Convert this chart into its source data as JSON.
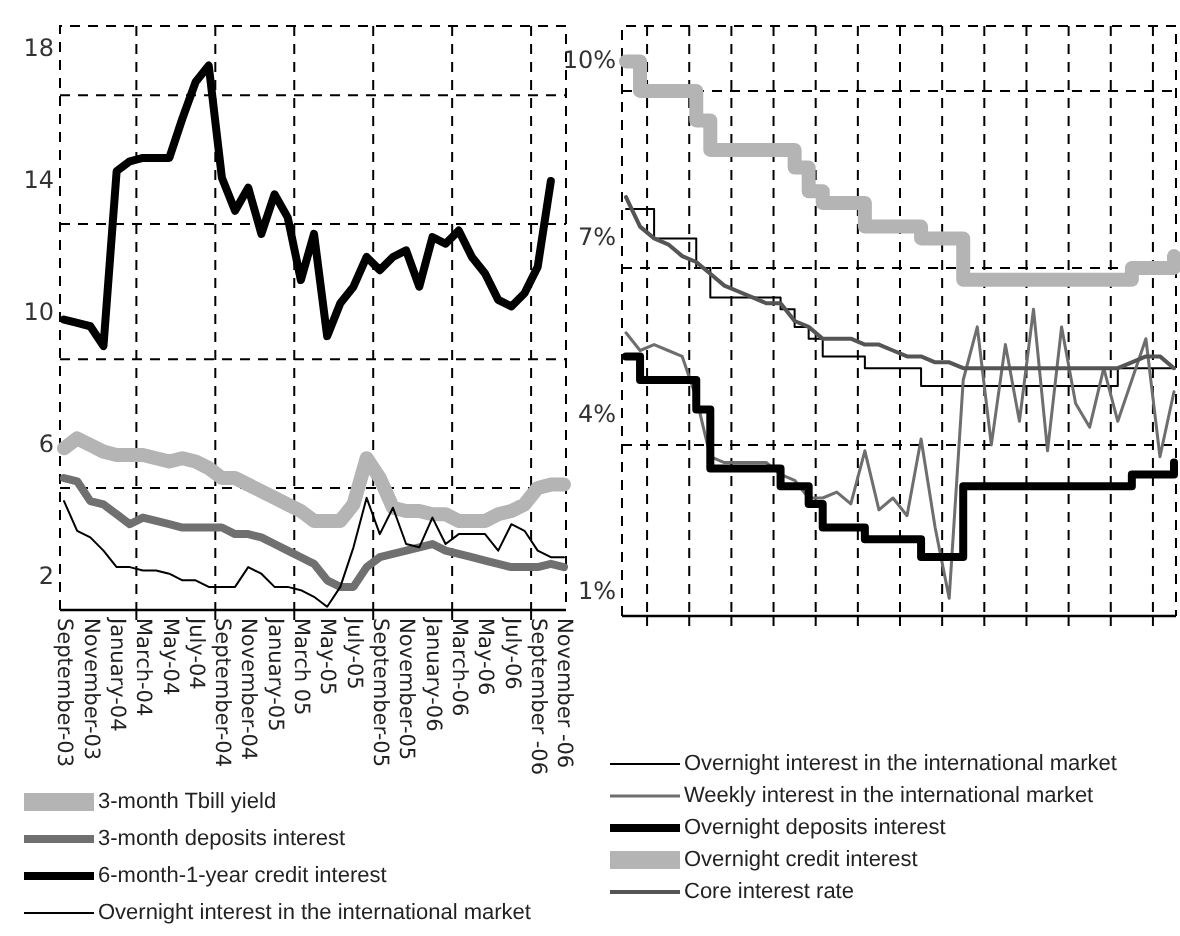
{
  "chart_data": [
    {
      "type": "line",
      "categories": [
        "September-03",
        null,
        "November-03",
        null,
        "January-04",
        null,
        "March-04",
        null,
        "May-04",
        null,
        "July-04",
        null,
        "September-04",
        null,
        "November-04",
        null,
        "January-05",
        null,
        "March 05",
        null,
        "May-05",
        null,
        "July-05",
        null,
        "September-05",
        null,
        "November-05",
        null,
        "January-06",
        null,
        "March-06",
        null,
        "May-06",
        null,
        "July-06",
        null,
        "September -06",
        null,
        "November -06"
      ],
      "series": [
        {
          "name": "3-month Tbill yield",
          "color": "#b4b4b4",
          "values": [
            5.9,
            6.2,
            6.0,
            5.8,
            5.7,
            5.7,
            5.7,
            5.6,
            5.5,
            5.6,
            5.5,
            5.3,
            5.0,
            5.0,
            4.8,
            4.6,
            4.4,
            4.2,
            4.0,
            3.7,
            3.7,
            3.7,
            4.2,
            5.6,
            5.0,
            4.1,
            4.0,
            4.0,
            3.9,
            3.9,
            3.7,
            3.7,
            3.7,
            3.9,
            4.0,
            4.2,
            4.7,
            4.8,
            4.8
          ]
        },
        {
          "name": "3-month deposits interest",
          "color": "#707070",
          "values": [
            5.0,
            4.9,
            4.3,
            4.2,
            3.9,
            3.6,
            3.8,
            3.7,
            3.6,
            3.5,
            3.5,
            3.5,
            3.5,
            3.3,
            3.3,
            3.2,
            3.0,
            2.8,
            2.6,
            2.4,
            1.9,
            1.7,
            1.7,
            2.3,
            2.6,
            2.7,
            2.8,
            2.9,
            3.0,
            2.8,
            2.7,
            2.6,
            2.5,
            2.4,
            2.3,
            2.3,
            2.3,
            2.4,
            2.3
          ]
        },
        {
          "name": "6-month-1-year credit interest",
          "color": "#000000",
          "values": [
            9.8,
            9.7,
            9.6,
            9.0,
            14.3,
            14.6,
            14.7,
            14.7,
            14.7,
            15.9,
            17.0,
            17.5,
            14.1,
            13.1,
            13.8,
            12.4,
            13.6,
            12.9,
            11.0,
            12.4,
            9.3,
            10.3,
            10.8,
            11.7,
            11.3,
            11.7,
            11.9,
            10.8,
            12.3,
            12.1,
            12.5,
            11.7,
            11.2,
            10.4,
            10.2,
            10.6,
            11.4,
            14.0,
            null
          ]
        },
        {
          "name": "Overnight interest in the international market",
          "color": "#000000",
          "values": [
            4.3,
            3.4,
            3.2,
            2.8,
            2.3,
            2.3,
            2.2,
            2.2,
            2.1,
            1.9,
            1.9,
            1.7,
            1.7,
            1.7,
            2.3,
            2.1,
            1.7,
            1.7,
            1.6,
            1.4,
            1.1,
            1.7,
            2.9,
            4.4,
            3.3,
            4.1,
            3.0,
            2.9,
            3.8,
            3.0,
            3.3,
            3.3,
            3.3,
            2.8,
            3.6,
            3.4,
            2.8,
            2.6,
            2.6
          ]
        }
      ],
      "ylim": [
        1,
        18.7
      ],
      "yticks": [
        2,
        6,
        10,
        14,
        18
      ],
      "grid": "x",
      "ref_lines": [
        {
          "axis": "y",
          "value": 4.7,
          "line_style": "dashed"
        },
        {
          "axis": "y",
          "value": 8.6,
          "line_style": "dashed"
        },
        {
          "axis": "y",
          "value": 12.7,
          "line_style": "dashed"
        },
        {
          "axis": "y",
          "value": 16.6,
          "line_style": "dashed"
        }
      ],
      "legend": "bottom"
    },
    {
      "type": "line",
      "categories": [
        null,
        null,
        null,
        null,
        null,
        null,
        null,
        null,
        null,
        null,
        null,
        null,
        null,
        null,
        null,
        null,
        null,
        null,
        null,
        null,
        null,
        null,
        null,
        null,
        null,
        null,
        null,
        null,
        null,
        null,
        null,
        null,
        null,
        null,
        null,
        null,
        null,
        null,
        null,
        null
      ],
      "series": [
        {
          "name": "Overnight interest in the international market",
          "type": "step",
          "color": "#000000",
          "values": [
            7.5,
            7.5,
            7.0,
            7.0,
            7.0,
            6.5,
            6.0,
            6.0,
            6.0,
            6.0,
            6.0,
            5.8,
            5.5,
            5.3,
            5.0,
            5.0,
            5.0,
            4.8,
            4.8,
            4.8,
            4.8,
            4.5,
            4.5,
            4.5,
            4.5,
            4.5,
            4.5,
            4.5,
            4.5,
            4.5,
            4.5,
            4.5,
            4.5,
            4.5,
            4.5,
            4.8,
            4.8,
            4.8,
            4.8,
            4.8
          ]
        },
        {
          "name": "Weekly interest in the international market",
          "color": "#6e6e6e",
          "values": [
            5.4,
            5.1,
            5.2,
            5.1,
            5.0,
            4.3,
            3.3,
            3.2,
            3.2,
            3.2,
            3.2,
            3.0,
            2.9,
            2.6,
            2.6,
            2.7,
            2.5,
            3.4,
            2.4,
            2.6,
            2.3,
            3.6,
            2.1,
            0.9,
            4.6,
            5.5,
            3.5,
            5.2,
            3.9,
            5.8,
            3.4,
            5.5,
            4.2,
            3.8,
            4.8,
            3.9,
            4.6,
            5.3,
            3.3,
            4.4
          ]
        },
        {
          "name": "Overnight deposits interest",
          "type": "step",
          "color": "#000000",
          "values": [
            5.0,
            4.6,
            4.6,
            4.6,
            4.6,
            4.1,
            3.1,
            3.1,
            3.1,
            3.1,
            3.1,
            2.8,
            2.8,
            2.5,
            2.1,
            2.1,
            2.1,
            1.9,
            1.9,
            1.9,
            1.9,
            1.6,
            1.6,
            1.6,
            2.8,
            2.8,
            2.8,
            2.8,
            2.8,
            2.8,
            2.8,
            2.8,
            2.8,
            2.8,
            2.8,
            2.8,
            3.0,
            3.0,
            3.0,
            3.2
          ]
        },
        {
          "name": "Overnight credit interest",
          "type": "step",
          "color": "#b4b4b4",
          "values": [
            10.0,
            9.5,
            9.5,
            9.5,
            9.5,
            9.0,
            8.5,
            8.5,
            8.5,
            8.5,
            8.5,
            8.5,
            8.2,
            7.8,
            7.6,
            7.6,
            7.6,
            7.2,
            7.2,
            7.2,
            7.2,
            7.0,
            7.0,
            7.0,
            6.3,
            6.3,
            6.3,
            6.3,
            6.3,
            6.3,
            6.3,
            6.3,
            6.3,
            6.3,
            6.3,
            6.3,
            6.5,
            6.5,
            6.5,
            6.7
          ]
        },
        {
          "name": "Core interest rate",
          "color": "#555555",
          "values": [
            7.7,
            7.2,
            7.0,
            6.9,
            6.7,
            6.6,
            6.4,
            6.2,
            6.1,
            6.0,
            5.9,
            5.9,
            5.6,
            5.5,
            5.3,
            5.3,
            5.3,
            5.2,
            5.2,
            5.1,
            5.0,
            5.0,
            4.9,
            4.9,
            4.8,
            4.8,
            4.8,
            4.8,
            4.8,
            4.8,
            4.8,
            4.8,
            4.8,
            4.8,
            4.8,
            4.8,
            4.9,
            5.0,
            5.0,
            4.8
          ]
        }
      ],
      "ylim": [
        0.6,
        10.6
      ],
      "yticks": [
        {
          "value": 1,
          "label": "1%"
        },
        {
          "value": 4,
          "label": "4%"
        },
        {
          "value": 7,
          "label": "7%"
        },
        {
          "value": 10,
          "label": "10%"
        }
      ],
      "grid": "x",
      "ref_lines": [
        {
          "axis": "y",
          "value": 3.5,
          "line_style": "dashed"
        },
        {
          "axis": "y",
          "value": 6.5,
          "line_style": "dashed"
        },
        {
          "axis": "y",
          "value": 9.5,
          "line_style": "dashed"
        }
      ],
      "legend": "bottom"
    }
  ]
}
